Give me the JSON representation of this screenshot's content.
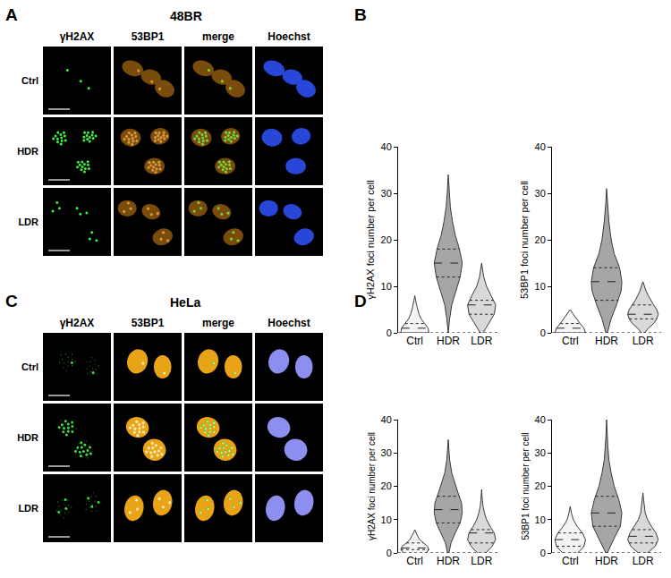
{
  "image_panels": [
    {
      "label": "A",
      "title": "48BR",
      "columns": [
        "γH2AX",
        "53BP1",
        "merge",
        "Hoechst"
      ],
      "rows": [
        "Ctrl",
        "HDR",
        "LDR"
      ]
    },
    {
      "label": "C",
      "title": "HeLa",
      "columns": [
        "γH2AX",
        "53BP1",
        "merge",
        "Hoechst"
      ],
      "rows": [
        "Ctrl",
        "HDR",
        "LDR"
      ]
    }
  ],
  "chart_panel_labels": [
    "B",
    "D"
  ],
  "chart_data": [
    {
      "type": "violin",
      "categories": [
        "Ctrl",
        "HDR",
        "LDR"
      ],
      "colors": [
        "#f4f4f4",
        "#a6a6a6",
        "#d9d9d9"
      ],
      "y_label": "γH2AX foci number per cell",
      "ylim": [
        0,
        40
      ],
      "yticks": [
        0,
        10,
        20,
        30,
        40
      ],
      "grid": false,
      "violins": [
        {
          "y": [
            0,
            1,
            2,
            3,
            4,
            5,
            6,
            7,
            8
          ],
          "density": [
            1,
            0.95,
            0.7,
            0.45,
            0.3,
            0.2,
            0.12,
            0.06,
            0
          ],
          "q1": 0,
          "median": 1,
          "q3": 2
        },
        {
          "y": [
            0,
            3,
            6,
            9,
            12,
            15,
            18,
            21,
            24,
            27,
            30,
            34
          ],
          "density": [
            0,
            0.1,
            0.25,
            0.55,
            0.85,
            1,
            0.8,
            0.5,
            0.3,
            0.15,
            0.07,
            0
          ],
          "q1": 12,
          "median": 15,
          "q3": 18
        },
        {
          "y": [
            0,
            2,
            4,
            6,
            8,
            10,
            12,
            15
          ],
          "density": [
            0.1,
            0.5,
            0.9,
            1,
            0.7,
            0.35,
            0.15,
            0
          ],
          "q1": 4,
          "median": 6,
          "q3": 7
        }
      ]
    },
    {
      "type": "violin",
      "categories": [
        "Ctrl",
        "HDR",
        "LDR"
      ],
      "colors": [
        "#f4f4f4",
        "#a6a6a6",
        "#d9d9d9"
      ],
      "y_label": "53BP1 foci number per cell",
      "ylim": [
        0,
        40
      ],
      "yticks": [
        0,
        10,
        20,
        30,
        40
      ],
      "grid": false,
      "violins": [
        {
          "y": [
            0,
            1,
            2,
            3,
            4,
            5
          ],
          "density": [
            1,
            0.9,
            0.65,
            0.4,
            0.2,
            0
          ],
          "q1": 0,
          "median": 1,
          "q3": 2
        },
        {
          "y": [
            0,
            3,
            6,
            9,
            11,
            14,
            17,
            20,
            24,
            28,
            31
          ],
          "density": [
            0.05,
            0.3,
            0.65,
            0.95,
            1,
            0.85,
            0.5,
            0.3,
            0.15,
            0.05,
            0
          ],
          "q1": 7,
          "median": 11,
          "q3": 14
        },
        {
          "y": [
            0,
            1,
            2,
            3,
            4,
            5,
            6,
            7,
            8,
            9,
            10,
            11
          ],
          "density": [
            0.1,
            0.35,
            0.7,
            0.9,
            1,
            0.9,
            0.7,
            0.5,
            0.35,
            0.2,
            0.1,
            0
          ],
          "q1": 3,
          "median": 4,
          "q3": 6
        }
      ]
    },
    {
      "type": "violin",
      "categories": [
        "Ctrl",
        "HDR",
        "LDR"
      ],
      "colors": [
        "#f4f4f4",
        "#a6a6a6",
        "#d9d9d9"
      ],
      "y_label": "γH2AX foci number per cell",
      "ylim": [
        0,
        40
      ],
      "yticks": [
        0,
        10,
        20,
        30,
        40
      ],
      "grid": false,
      "violins": [
        {
          "y": [
            0,
            1,
            2,
            3,
            4,
            5,
            6,
            7
          ],
          "density": [
            0.8,
            1,
            0.9,
            0.6,
            0.35,
            0.2,
            0.1,
            0
          ],
          "q1": 1,
          "median": 1.5,
          "q3": 3
        },
        {
          "y": [
            0,
            3,
            6,
            9,
            12,
            15,
            18,
            21,
            24,
            28,
            31,
            34
          ],
          "density": [
            0.05,
            0.2,
            0.5,
            0.85,
            1,
            0.95,
            0.7,
            0.45,
            0.25,
            0.1,
            0.05,
            0
          ],
          "q1": 9,
          "median": 13,
          "q3": 17
        },
        {
          "y": [
            0,
            2,
            4,
            6,
            8,
            10,
            12,
            14,
            16,
            19
          ],
          "density": [
            0.3,
            0.75,
            1,
            0.9,
            0.6,
            0.35,
            0.2,
            0.1,
            0.05,
            0
          ],
          "q1": 3,
          "median": 6,
          "q3": 7
        }
      ]
    },
    {
      "type": "violin",
      "categories": [
        "Ctrl",
        "HDR",
        "LDR"
      ],
      "colors": [
        "#f4f4f4",
        "#a6a6a6",
        "#d9d9d9"
      ],
      "y_label": "53BP1 foci number per cell",
      "ylim": [
        0,
        40
      ],
      "yticks": [
        0,
        10,
        20,
        30,
        40
      ],
      "grid": false,
      "violins": [
        {
          "y": [
            0,
            2,
            4,
            6,
            8,
            10,
            12,
            14
          ],
          "density": [
            0.5,
            0.9,
            1,
            0.8,
            0.45,
            0.2,
            0.08,
            0
          ],
          "q1": 2,
          "median": 4,
          "q3": 6
        },
        {
          "y": [
            0,
            4,
            8,
            12,
            16,
            20,
            24,
            28,
            32,
            36,
            40
          ],
          "density": [
            0.05,
            0.45,
            0.9,
            1,
            0.8,
            0.5,
            0.3,
            0.15,
            0.08,
            0.03,
            0
          ],
          "q1": 8,
          "median": 12,
          "q3": 17
        },
        {
          "y": [
            0,
            2,
            4,
            6,
            8,
            10,
            12,
            14,
            16,
            18
          ],
          "density": [
            0.3,
            0.8,
            1,
            0.85,
            0.55,
            0.3,
            0.15,
            0.08,
            0.04,
            0
          ],
          "q1": 3,
          "median": 5,
          "q3": 7
        }
      ]
    }
  ]
}
